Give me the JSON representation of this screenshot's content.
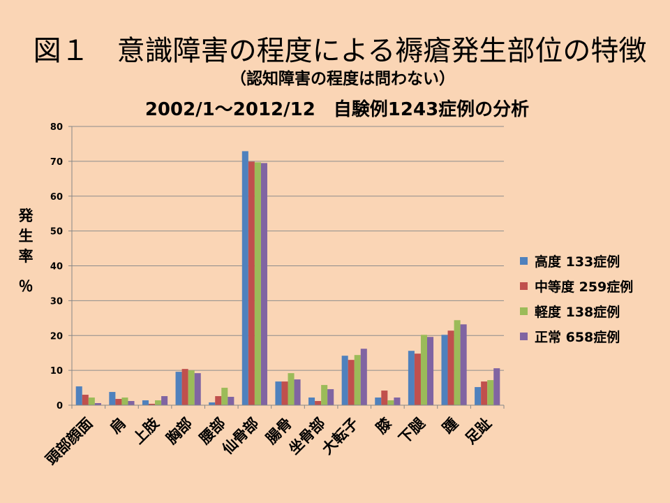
{
  "slide": {
    "background": "#FAD5B5"
  },
  "chart_data": {
    "type": "bar",
    "title": "図１　意識障害の程度による褥瘡発生部位の特徴",
    "subtitle": "（認知障害の程度は問わない）",
    "description": "2002/1～2012/12　自験例1243症例の分析",
    "xlabel": "",
    "ylabel": "発生率",
    "yunit": "％",
    "ylim": [
      0,
      80
    ],
    "yticks": [
      0,
      10,
      20,
      30,
      40,
      50,
      60,
      70,
      80
    ],
    "grid": true,
    "legend": "right",
    "grid_color": "#8C8C8C",
    "axis_color": "#868686",
    "categories": [
      "頭部顔面",
      "肩",
      "上肢",
      "胸部",
      "腰部",
      "仙骨部",
      "腸骨",
      "坐骨部",
      "大転子",
      "膝",
      "下腿",
      "踵",
      "足趾"
    ],
    "series": [
      {
        "name": "高度 133症例",
        "color": "#4F81BD",
        "values": [
          5.4,
          3.8,
          1.4,
          9.6,
          0.8,
          72.9,
          6.8,
          2.2,
          14.2,
          2.2,
          15.6,
          20.2,
          5.2
        ]
      },
      {
        "name": "中等度 259症例",
        "color": "#C0504D",
        "values": [
          3.0,
          1.8,
          0.4,
          10.4,
          2.6,
          69.9,
          6.8,
          1.2,
          13.0,
          4.2,
          14.8,
          21.4,
          6.8
        ]
      },
      {
        "name": "軽度 138症例",
        "color": "#9BBB59",
        "values": [
          2.2,
          2.2,
          1.4,
          10.0,
          5.0,
          69.7,
          9.2,
          5.8,
          14.4,
          1.4,
          20.2,
          24.4,
          7.2
        ]
      },
      {
        "name": "正常 658症例",
        "color": "#8064A2",
        "values": [
          0.6,
          1.2,
          2.6,
          9.2,
          2.4,
          69.5,
          7.4,
          4.6,
          16.2,
          2.2,
          19.6,
          23.2,
          10.6
        ]
      }
    ]
  }
}
